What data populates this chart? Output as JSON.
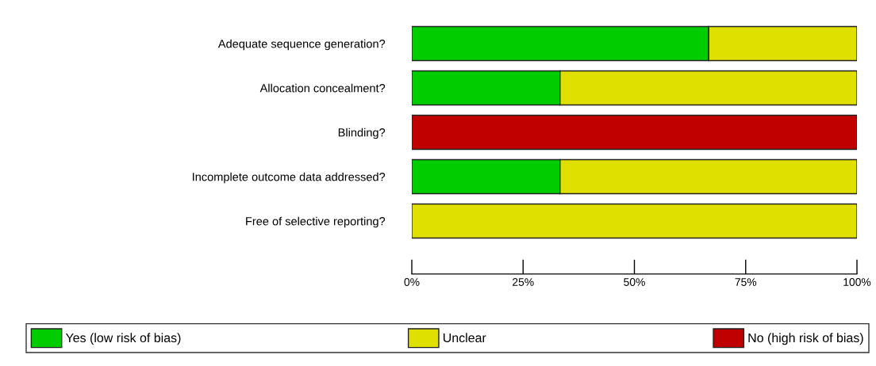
{
  "chart_data": {
    "type": "bar",
    "orientation": "horizontal",
    "stacked": true,
    "categories": [
      "Adequate sequence generation?",
      "Allocation concealment?",
      "Blinding?",
      "Incomplete outcome data addressed?",
      "Free of selective reporting?"
    ],
    "series": [
      {
        "name": "Yes (low risk of bias)",
        "color": "#00cc00",
        "values": [
          66.7,
          33.3,
          0,
          33.3,
          0
        ]
      },
      {
        "name": "Unclear",
        "color": "#e0e000",
        "values": [
          33.3,
          66.7,
          0,
          66.7,
          100
        ]
      },
      {
        "name": "No (high risk of bias)",
        "color": "#c00000",
        "values": [
          0,
          0,
          100,
          0,
          0
        ]
      }
    ],
    "xlim": [
      0,
      100
    ],
    "xticks": [
      {
        "value": 0,
        "label": "0%"
      },
      {
        "value": 25,
        "label": "25%"
      },
      {
        "value": 50,
        "label": "50%"
      },
      {
        "value": 75,
        "label": "75%"
      },
      {
        "value": 100,
        "label": "100%"
      }
    ],
    "grid": false,
    "legend": "bottom"
  }
}
